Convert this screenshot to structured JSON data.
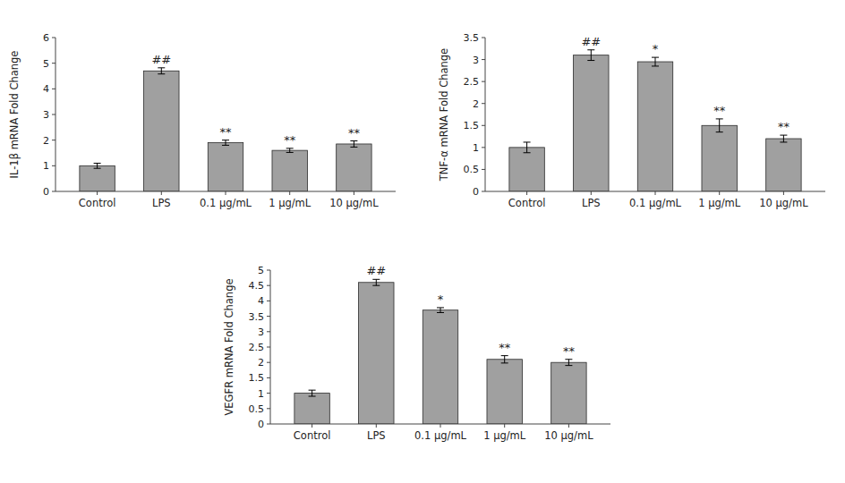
{
  "chart_data": [
    {
      "type": "bar",
      "categories": [
        "Control",
        "LPS",
        "0.1 μg/mL",
        "1 μg/mL",
        "10 μg/mL"
      ],
      "values": [
        1.0,
        4.7,
        1.9,
        1.6,
        1.85
      ],
      "errors": [
        0.1,
        0.12,
        0.1,
        0.08,
        0.12
      ],
      "annotations": [
        null,
        "##",
        "**",
        "**",
        "**"
      ],
      "ylabel": "IL-1β mRNA Fold Change",
      "ylim": [
        0,
        6
      ],
      "yticks": [
        0,
        1,
        2,
        3,
        4,
        5,
        6
      ],
      "color": "#a0a0a0",
      "grid": false
    },
    {
      "type": "bar",
      "categories": [
        "Control",
        "LPS",
        "0.1 μg/mL",
        "1 μg/mL",
        "10 μg/mL"
      ],
      "values": [
        1.0,
        3.1,
        2.95,
        1.5,
        1.2
      ],
      "errors": [
        0.12,
        0.12,
        0.1,
        0.15,
        0.08
      ],
      "annotations": [
        null,
        "##",
        "*",
        "**",
        "**"
      ],
      "ylabel": "TNF-α mRNA Fold Change",
      "ylim": [
        0,
        3.5
      ],
      "yticks": [
        0,
        0.5,
        1,
        1.5,
        2,
        2.5,
        3,
        3.5
      ],
      "color": "#a0a0a0",
      "grid": false
    },
    {
      "type": "bar",
      "categories": [
        "Control",
        "LPS",
        "0.1 μg/mL",
        "1 μg/mL",
        "10 μg/mL"
      ],
      "values": [
        1.0,
        4.6,
        3.7,
        2.1,
        2.0
      ],
      "errors": [
        0.1,
        0.1,
        0.08,
        0.12,
        0.1
      ],
      "annotations": [
        null,
        "##",
        "*",
        "**",
        "**"
      ],
      "ylabel": "VEGFR mRNA Fold Change",
      "ylim": [
        0,
        5
      ],
      "yticks": [
        0,
        0.5,
        1,
        1.5,
        2,
        2.5,
        3,
        3.5,
        4,
        4.5,
        5
      ],
      "color": "#a0a0a0",
      "grid": false
    }
  ]
}
